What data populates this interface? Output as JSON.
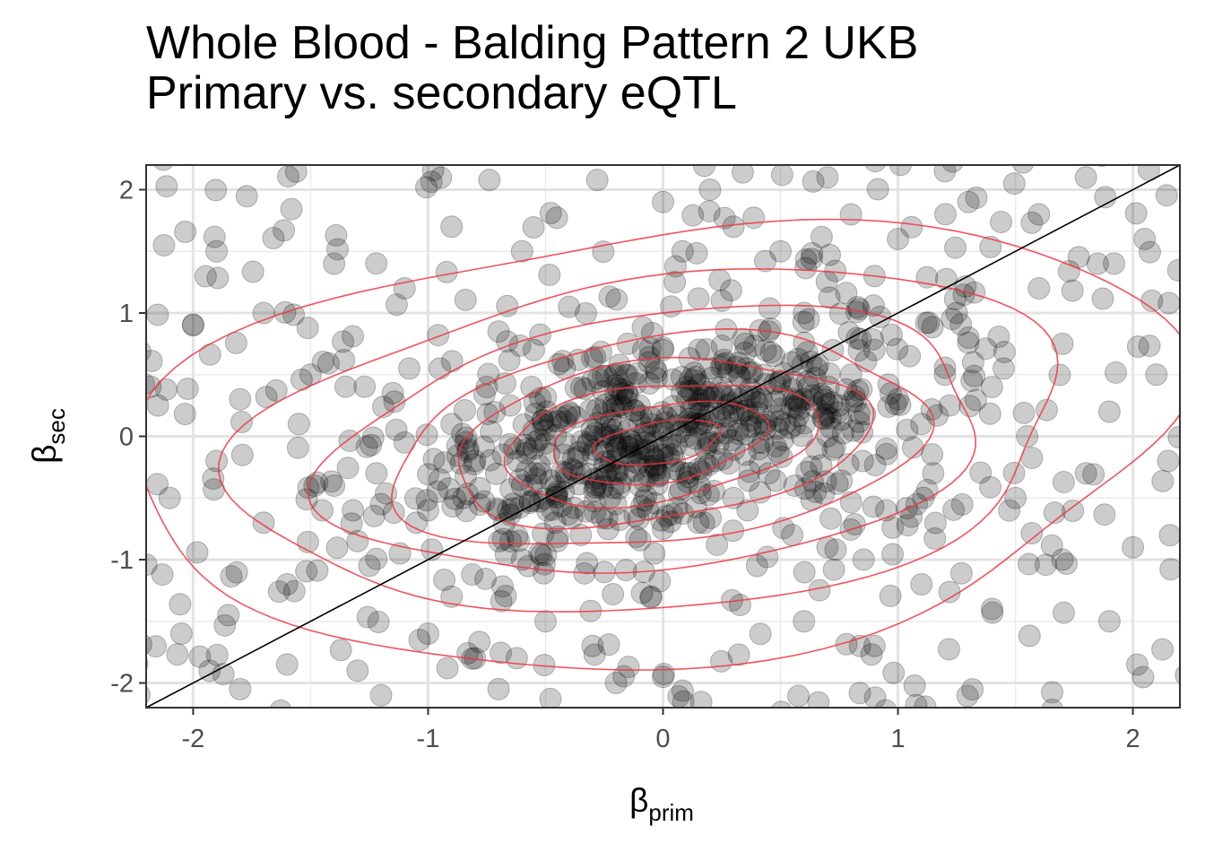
{
  "chart_data": {
    "type": "scatter",
    "title": "Whole Blood - Balding Pattern 2 UKB",
    "subtitle": "Primary vs. secondary eQTL",
    "xlabel": {
      "symbol": "β",
      "subscript": "prim"
    },
    "ylabel": {
      "symbol": "β",
      "subscript": "sec"
    },
    "xlim": [
      -2.2,
      2.2
    ],
    "ylim": [
      -2.2,
      2.2
    ],
    "x_ticks": [
      -2,
      -1,
      0,
      1,
      2
    ],
    "y_ticks": [
      -2,
      -1,
      0,
      1,
      2
    ],
    "x_tick_labels": [
      "-2",
      "-1",
      "0",
      "1",
      "2"
    ],
    "y_tick_labels": [
      "-2",
      "-1",
      "0",
      "1",
      "2"
    ],
    "grid": true,
    "reference_line": {
      "slope": 1,
      "intercept": 0,
      "color": "#000000"
    },
    "point_color": "#000000",
    "point_opacity": 0.2,
    "contour_color": "#f0353f",
    "contour_levels": 8,
    "approx_point_count": 1000,
    "points": [
      [
        0.0,
        0.05
      ],
      [
        -0.1,
        -0.15
      ],
      [
        0.1,
        0.0
      ],
      [
        -0.2,
        -0.1
      ],
      [
        0.05,
        -0.2
      ],
      [
        -0.05,
        0.1
      ],
      [
        0.15,
        0.1
      ],
      [
        -0.15,
        0.05
      ],
      [
        0.2,
        -0.05
      ],
      [
        -0.25,
        -0.25
      ],
      [
        0.3,
        0.2
      ],
      [
        -0.3,
        0.0
      ],
      [
        0.25,
        0.35
      ],
      [
        -0.35,
        -0.3
      ],
      [
        0.4,
        0.1
      ],
      [
        -0.4,
        0.2
      ],
      [
        0.35,
        -0.15
      ],
      [
        -0.45,
        -0.45
      ],
      [
        0.5,
        0.45
      ],
      [
        -0.5,
        0.05
      ],
      [
        0.45,
        -0.3
      ],
      [
        -0.55,
        -0.1
      ],
      [
        0.6,
        0.3
      ],
      [
        -0.6,
        -0.4
      ],
      [
        0.55,
        0.6
      ],
      [
        -0.65,
        0.25
      ],
      [
        0.7,
        0.0
      ],
      [
        -0.7,
        -0.6
      ],
      [
        0.65,
        -0.45
      ],
      [
        -0.75,
        0.4
      ],
      [
        0.8,
        0.5
      ],
      [
        -0.8,
        -0.2
      ],
      [
        0.75,
        0.25
      ],
      [
        -0.85,
        -0.5
      ],
      [
        0.9,
        0.7
      ],
      [
        -0.9,
        0.1
      ],
      [
        0.85,
        -0.2
      ],
      [
        -0.95,
        -0.35
      ],
      [
        1.0,
        0.3
      ],
      [
        -1.0,
        -0.6
      ],
      [
        0.1,
        0.4
      ],
      [
        -0.1,
        -0.4
      ],
      [
        0.2,
        0.55
      ],
      [
        -0.2,
        -0.55
      ],
      [
        0.3,
        -0.5
      ],
      [
        -0.3,
        0.45
      ],
      [
        0.0,
        0.7
      ],
      [
        0.0,
        -0.75
      ],
      [
        0.15,
        -0.7
      ],
      [
        -0.15,
        0.75
      ],
      [
        0.35,
        0.75
      ],
      [
        -0.35,
        -0.8
      ],
      [
        0.45,
        0.85
      ],
      [
        -0.45,
        -0.85
      ],
      [
        0.55,
        -0.8
      ],
      [
        -0.55,
        0.7
      ],
      [
        0.6,
        1.0
      ],
      [
        -0.6,
        -1.0
      ],
      [
        0.25,
        1.1
      ],
      [
        -0.25,
        -1.1
      ],
      [
        0.05,
        1.25
      ],
      [
        -0.05,
        -1.3
      ],
      [
        0.4,
        -1.05
      ],
      [
        -0.4,
        1.05
      ],
      [
        0.7,
        -0.9
      ],
      [
        -0.7,
        0.85
      ],
      [
        0.95,
        -0.6
      ],
      [
        -0.95,
        0.55
      ],
      [
        1.1,
        0.1
      ],
      [
        -1.1,
        -0.05
      ],
      [
        1.2,
        0.5
      ],
      [
        -1.2,
        -0.55
      ],
      [
        1.15,
        -0.3
      ],
      [
        -1.15,
        0.35
      ],
      [
        1.3,
        0.8
      ],
      [
        -1.3,
        -0.85
      ],
      [
        1.25,
        1.0
      ],
      [
        -1.25,
        -1.05
      ],
      [
        1.4,
        0.4
      ],
      [
        -1.4,
        -0.4
      ],
      [
        1.45,
        0.55
      ],
      [
        -1.45,
        -0.6
      ],
      [
        1.5,
        -0.5
      ],
      [
        -1.5,
        0.5
      ],
      [
        1.6,
        1.2
      ],
      [
        -1.6,
        -1.2
      ],
      [
        1.55,
        0.0
      ],
      [
        -1.55,
        0.1
      ],
      [
        1.7,
        0.75
      ],
      [
        -1.7,
        -0.7
      ],
      [
        1.8,
        -0.3
      ],
      [
        -1.8,
        0.3
      ],
      [
        1.85,
        1.4
      ],
      [
        -1.85,
        -1.45
      ],
      [
        1.9,
        0.2
      ],
      [
        -1.9,
        -0.2
      ],
      [
        2.0,
        -0.9
      ],
      [
        -2.0,
        0.9
      ],
      [
        2.05,
        1.6
      ],
      [
        -2.05,
        -1.6
      ],
      [
        0.9,
        1.3
      ],
      [
        -0.9,
        -1.3
      ],
      [
        1.0,
        1.6
      ],
      [
        -1.0,
        -1.6
      ],
      [
        0.5,
        1.5
      ],
      [
        -0.5,
        -1.5
      ],
      [
        0.8,
        1.8
      ],
      [
        -0.8,
        -1.8
      ],
      [
        0.3,
        1.7
      ],
      [
        -0.3,
        -1.7
      ],
      [
        1.3,
        1.9
      ],
      [
        -1.3,
        -1.9
      ],
      [
        1.1,
        -1.2
      ],
      [
        -1.1,
        1.2
      ],
      [
        1.4,
        -1.4
      ],
      [
        -1.4,
        1.4
      ],
      [
        0.6,
        -1.5
      ],
      [
        -0.6,
        1.5
      ],
      [
        0.9,
        -1.7
      ],
      [
        -0.9,
        1.7
      ],
      [
        1.7,
        -1.0
      ],
      [
        -1.7,
        1.0
      ],
      [
        1.9,
        -1.5
      ],
      [
        -1.9,
        1.5
      ],
      [
        1.6,
        1.8
      ],
      [
        -1.6,
        -1.85
      ],
      [
        2.1,
        0.5
      ],
      [
        -2.1,
        -0.5
      ],
      [
        2.15,
        -0.2
      ],
      [
        -2.15,
        0.25
      ],
      [
        0.2,
        2.0
      ],
      [
        -0.2,
        -2.0
      ],
      [
        0.7,
        2.1
      ],
      [
        -0.7,
        -2.05
      ],
      [
        1.2,
        2.15
      ],
      [
        -1.2,
        -2.1
      ],
      [
        1.8,
        2.1
      ],
      [
        -1.8,
        -2.05
      ],
      [
        0.0,
        1.9
      ],
      [
        0.0,
        -1.95
      ],
      [
        -0.1,
        0.25
      ],
      [
        0.1,
        -0.3
      ],
      [
        0.22,
        0.15
      ],
      [
        -0.22,
        -0.2
      ],
      [
        0.32,
        0.05
      ],
      [
        -0.32,
        -0.05
      ],
      [
        0.12,
        0.22
      ],
      [
        -0.12,
        -0.28
      ],
      [
        0.42,
        0.3
      ],
      [
        -0.42,
        -0.15
      ],
      [
        0.52,
        0.1
      ],
      [
        -0.52,
        -0.3
      ],
      [
        0.62,
        0.4
      ],
      [
        -0.62,
        -0.2
      ],
      [
        0.28,
        -0.22
      ],
      [
        -0.28,
        0.22
      ],
      [
        0.48,
        -0.08
      ],
      [
        -0.48,
        0.12
      ],
      [
        0.18,
        0.32
      ],
      [
        -0.18,
        -0.38
      ],
      [
        0.38,
        0.52
      ],
      [
        -0.38,
        -0.58
      ],
      [
        0.58,
        0.22
      ],
      [
        -0.58,
        -0.28
      ],
      [
        0.68,
        0.15
      ],
      [
        -0.68,
        -0.15
      ],
      [
        0.78,
        0.38
      ],
      [
        -0.78,
        -0.42
      ],
      [
        0.08,
        0.48
      ],
      [
        -0.08,
        -0.52
      ],
      [
        0.26,
        0.62
      ],
      [
        -0.26,
        -0.66
      ],
      [
        0.46,
        0.68
      ],
      [
        -0.46,
        -0.7
      ],
      [
        0.66,
        0.58
      ],
      [
        -0.66,
        -0.6
      ],
      [
        0.86,
        0.18
      ],
      [
        -0.86,
        -0.22
      ],
      [
        0.96,
        0.42
      ],
      [
        -0.96,
        -0.45
      ],
      [
        0.76,
        -0.36
      ],
      [
        -0.76,
        0.34
      ],
      [
        0.56,
        -0.4
      ],
      [
        -0.56,
        0.4
      ],
      [
        0.36,
        -0.6
      ],
      [
        -0.36,
        0.62
      ],
      [
        0.16,
        -0.46
      ],
      [
        -0.16,
        0.5
      ],
      [
        0.06,
        -0.58
      ],
      [
        -0.06,
        0.6
      ],
      [
        1.05,
        0.65
      ],
      [
        -1.05,
        -0.7
      ],
      [
        1.12,
        0.92
      ],
      [
        -1.12,
        -0.95
      ],
      [
        1.22,
        0.25
      ],
      [
        -1.22,
        -0.3
      ],
      [
        1.32,
        0.6
      ],
      [
        -1.32,
        -0.6
      ],
      [
        1.08,
        -0.55
      ],
      [
        -1.08,
        0.55
      ]
    ]
  }
}
